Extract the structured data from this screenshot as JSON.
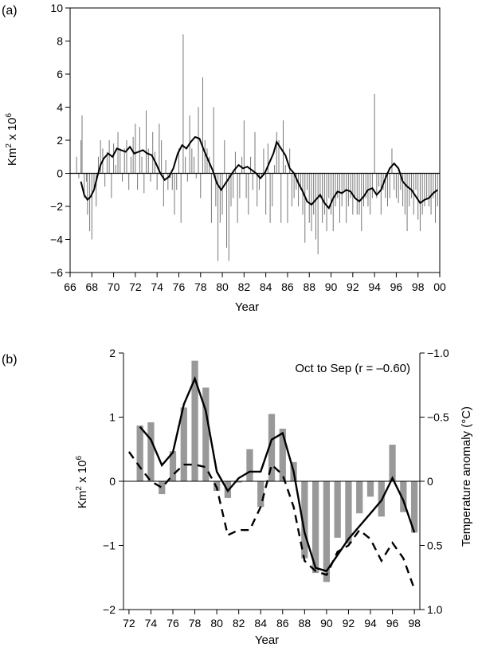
{
  "panel_a": {
    "letter": "(a)",
    "xlabel": "Year",
    "ylabel_main": "Km",
    "ylabel_sup2": "2",
    "ylabel_mid": " x 10",
    "ylabel_sup6": "6"
  },
  "panel_b": {
    "letter": "(b)",
    "xlabel": "Year",
    "ylabel_main": "Km",
    "ylabel_sup2": "2",
    "ylabel_mid": " x 10",
    "ylabel_sup6": "6",
    "y2label": "Temperature anomaly (°C)",
    "annotation": "Oct to Sep (r = –0.60)"
  },
  "chart_data": [
    {
      "type": "bar",
      "panel": "a",
      "xlabel": "Year",
      "ylabel": "Km2 x 10^6",
      "xlim": [
        1966,
        2000
      ],
      "ylim": [
        -6,
        10
      ],
      "xticks": [
        1966,
        1968,
        1970,
        1972,
        1974,
        1976,
        1978,
        1980,
        1982,
        1984,
        1986,
        1988,
        1990,
        1992,
        1994,
        1996,
        1998,
        2000
      ],
      "xtick_labels": [
        "66",
        "68",
        "70",
        "72",
        "74",
        "76",
        "78",
        "80",
        "82",
        "84",
        "86",
        "88",
        "90",
        "92",
        "94",
        "96",
        "98",
        "00"
      ],
      "yticks": [
        -6,
        -4,
        -2,
        0,
        2,
        4,
        6,
        8,
        10
      ],
      "ytick_labels": [
        "−6",
        "−4",
        "−2",
        "0",
        "2",
        "4",
        "6",
        "8",
        "10"
      ],
      "series": [
        {
          "kind": "weekly-bars",
          "x": [
            1966.6,
            1966.8,
            1967.0,
            1967.1,
            1967.3,
            1967.5,
            1967.6,
            1967.8,
            1968.0,
            1968.2,
            1968.4,
            1968.6,
            1968.8,
            1969.0,
            1969.2,
            1969.4,
            1969.6,
            1969.8,
            1970.0,
            1970.2,
            1970.4,
            1970.6,
            1970.8,
            1971.0,
            1971.2,
            1971.4,
            1971.6,
            1971.8,
            1972.0,
            1972.2,
            1972.4,
            1972.6,
            1972.8,
            1973.0,
            1973.2,
            1973.4,
            1973.6,
            1973.8,
            1974.0,
            1974.2,
            1974.4,
            1974.6,
            1974.8,
            1975.0,
            1975.2,
            1975.4,
            1975.6,
            1975.8,
            1976.0,
            1976.2,
            1976.4,
            1976.6,
            1976.8,
            1977.0,
            1977.2,
            1977.4,
            1977.6,
            1977.8,
            1978.0,
            1978.2,
            1978.4,
            1978.6,
            1978.8,
            1979.0,
            1979.2,
            1979.4,
            1979.6,
            1979.8,
            1980.0,
            1980.2,
            1980.4,
            1980.6,
            1980.8,
            1981.0,
            1981.2,
            1981.4,
            1981.6,
            1981.8,
            1982.0,
            1982.2,
            1982.4,
            1982.6,
            1982.8,
            1983.0,
            1983.2,
            1983.4,
            1983.6,
            1983.8,
            1984.0,
            1984.2,
            1984.4,
            1984.6,
            1984.8,
            1985.0,
            1985.2,
            1985.4,
            1985.6,
            1985.8,
            1986.0,
            1986.2,
            1986.4,
            1986.6,
            1986.8,
            1987.0,
            1987.2,
            1987.4,
            1987.6,
            1987.8,
            1988.0,
            1988.2,
            1988.4,
            1988.6,
            1988.8,
            1989.0,
            1989.2,
            1989.4,
            1989.6,
            1989.8,
            1990.0,
            1990.2,
            1990.4,
            1990.6,
            1990.8,
            1991.0,
            1991.2,
            1991.4,
            1991.6,
            1991.8,
            1992.0,
            1992.2,
            1992.4,
            1992.6,
            1992.8,
            1993.0,
            1993.2,
            1993.4,
            1993.6,
            1993.8,
            1994.0,
            1994.2,
            1994.4,
            1994.6,
            1994.8,
            1995.0,
            1995.2,
            1995.4,
            1995.6,
            1995.8,
            1996.0,
            1996.2,
            1996.4,
            1996.6,
            1996.8,
            1997.0,
            1997.2,
            1997.4,
            1997.6,
            1997.8,
            1998.0,
            1998.2,
            1998.4,
            1998.6,
            1998.8,
            1999.0,
            1999.2,
            1999.4,
            1999.6,
            1999.8
          ],
          "values": [
            1.0,
            -0.3,
            2.0,
            3.5,
            -1.5,
            -0.5,
            -2.5,
            -3.5,
            -4.0,
            -1.0,
            -2.0,
            1.0,
            2.0,
            1.5,
            -0.8,
            1.3,
            2.0,
            -1.5,
            1.8,
            0.5,
            2.5,
            1.5,
            -0.5,
            1.5,
            2.0,
            -1.0,
            1.0,
            2.2,
            3.0,
            -1.0,
            2.8,
            1.0,
            -1.2,
            3.8,
            1.5,
            -0.5,
            2.5,
            1.3,
            -1.0,
            3.0,
            2.0,
            -2.0,
            0.8,
            -1.0,
            -0.3,
            -1.0,
            -2.5,
            -1.0,
            1.5,
            -3.0,
            8.4,
            1.0,
            -0.5,
            3.5,
            1.5,
            1.0,
            -0.3,
            4.0,
            -1.5,
            5.8,
            2.0,
            1.5,
            1.0,
            -3.0,
            4.0,
            -2.0,
            -5.3,
            -3.0,
            -2.5,
            2.0,
            -4.5,
            -5.3,
            -2.0,
            -1.5,
            1.3,
            -3.0,
            -1.5,
            1.0,
            3.2,
            -1.5,
            -2.5,
            1.0,
            -1.0,
            2.5,
            -2.0,
            -1.0,
            -0.3,
            1.5,
            -2.5,
            1.8,
            -3.0,
            -2.0,
            0.5,
            2.5,
            2.0,
            -3.0,
            3.2,
            0.5,
            -3.0,
            1.5,
            -2.0,
            -1.5,
            -1.0,
            -2.0,
            -1.0,
            -2.5,
            -4.2,
            -1.0,
            -3.0,
            -3.5,
            -2.5,
            -4.0,
            -4.9,
            -1.5,
            -3.0,
            -2.5,
            -3.5,
            -1.5,
            -2.5,
            -3.5,
            -2.0,
            -1.5,
            -3.0,
            -2.0,
            -1.0,
            -3.0,
            -2.0,
            -1.5,
            -2.5,
            -1.5,
            -2.5,
            -2.5,
            -3.5,
            -2.0,
            -1.5,
            -2.0,
            -2.5,
            -1.5,
            4.8,
            -1.5,
            -0.8,
            -2.5,
            -1.0,
            -1.5,
            -2.0,
            -1.5,
            1.5,
            -1.0,
            -1.5,
            -1.8,
            -1.0,
            -2.0,
            -2.5,
            -3.5,
            -2.0,
            -1.5,
            -2.5,
            -1.0,
            -2.8,
            -3.5,
            -2.5,
            -2.0,
            -1.5,
            -2.0,
            -2.5,
            -1.5,
            -3.0,
            -2.0
          ]
        },
        {
          "kind": "running-mean",
          "x": [
            1967.0,
            1967.3,
            1967.6,
            1967.9,
            1968.2,
            1968.5,
            1968.8,
            1969.1,
            1969.5,
            1969.9,
            1970.3,
            1970.7,
            1971.1,
            1971.5,
            1971.9,
            1972.3,
            1972.7,
            1973.1,
            1973.5,
            1973.9,
            1974.3,
            1974.7,
            1975.1,
            1975.5,
            1975.9,
            1976.3,
            1976.7,
            1977.1,
            1977.5,
            1977.9,
            1978.3,
            1978.7,
            1979.1,
            1979.5,
            1979.9,
            1980.3,
            1980.7,
            1981.1,
            1981.5,
            1981.9,
            1982.3,
            1982.7,
            1983.1,
            1983.5,
            1983.9,
            1984.3,
            1984.7,
            1985.0,
            1985.4,
            1985.8,
            1986.2,
            1986.6,
            1987.0,
            1987.4,
            1987.8,
            1988.2,
            1988.6,
            1989.0,
            1989.4,
            1989.8,
            1990.2,
            1990.6,
            1991.0,
            1991.4,
            1991.8,
            1992.2,
            1992.6,
            1993.0,
            1993.4,
            1993.8,
            1994.2,
            1994.6,
            1995.0,
            1995.4,
            1995.8,
            1996.2,
            1996.6,
            1997.0,
            1997.4,
            1997.8,
            1998.2,
            1998.6,
            1999.0,
            1999.4,
            1999.8
          ],
          "values": [
            -0.5,
            -1.3,
            -1.6,
            -1.4,
            -1.0,
            -0.2,
            0.5,
            0.9,
            1.2,
            1.0,
            1.5,
            1.4,
            1.3,
            1.6,
            1.2,
            1.3,
            1.4,
            1.2,
            1.1,
            0.6,
            0.0,
            -0.4,
            -0.2,
            0.3,
            1.2,
            1.7,
            1.5,
            1.9,
            2.2,
            2.1,
            1.4,
            0.8,
            0.2,
            -0.6,
            -1.0,
            -0.6,
            -0.2,
            0.2,
            0.5,
            0.3,
            0.4,
            0.2,
            0.0,
            -0.3,
            0.0,
            0.6,
            1.2,
            1.9,
            1.5,
            1.1,
            0.3,
            0.0,
            -0.6,
            -1.1,
            -1.7,
            -1.9,
            -1.6,
            -1.3,
            -1.8,
            -2.1,
            -1.5,
            -1.1,
            -1.2,
            -1.0,
            -1.1,
            -1.5,
            -1.7,
            -1.4,
            -1.0,
            -0.9,
            -1.3,
            -1.0,
            -0.3,
            0.3,
            0.6,
            0.3,
            -0.5,
            -0.8,
            -1.0,
            -1.4,
            -1.8,
            -1.6,
            -1.5,
            -1.2,
            -1.0
          ]
        }
      ]
    },
    {
      "type": "bar",
      "panel": "b",
      "xlabel": "Year",
      "ylabel": "Km2 x 10^6",
      "y2label": "Temperature anomaly (°C)",
      "annotation": "Oct to Sep (r = –0.60)",
      "xlim": [
        1971.5,
        1998.5
      ],
      "ylim": [
        -2,
        2
      ],
      "y2lim_top_to_bottom": [
        -1.0,
        1.0
      ],
      "xticks": [
        1972,
        1974,
        1976,
        1978,
        1980,
        1982,
        1984,
        1986,
        1988,
        1990,
        1992,
        1994,
        1996,
        1998
      ],
      "xtick_labels": [
        "72",
        "74",
        "76",
        "78",
        "80",
        "82",
        "84",
        "86",
        "88",
        "90",
        "92",
        "94",
        "96",
        "98"
      ],
      "yticks": [
        -2,
        -1,
        0,
        1,
        2
      ],
      "ytick_labels": [
        "−2",
        "−1",
        "0",
        "1",
        "2"
      ],
      "y2ticks": [
        -1.0,
        -0.5,
        0,
        0.5,
        1.0
      ],
      "y2tick_labels": [
        "−1.0",
        "−0.5",
        "0",
        "0.5",
        "1.0"
      ],
      "categories": [
        1973,
        1974,
        1975,
        1976,
        1977,
        1978,
        1979,
        1980,
        1981,
        1982,
        1983,
        1984,
        1985,
        1986,
        1987,
        1988,
        1989,
        1990,
        1991,
        1992,
        1993,
        1994,
        1995,
        1996,
        1997,
        1998
      ],
      "series": [
        {
          "kind": "bars",
          "values": [
            0.87,
            0.92,
            -0.2,
            0.47,
            1.15,
            1.88,
            1.46,
            -0.15,
            -0.26,
            -0.02,
            0.5,
            -0.4,
            1.05,
            0.82,
            0.3,
            -1.2,
            -1.43,
            -1.57,
            -0.88,
            -0.97,
            -0.5,
            -0.24,
            -0.55,
            0.57,
            -0.48,
            -0.8
          ]
        },
        {
          "kind": "solid-line",
          "x": [
            1973,
            1974,
            1975,
            1976,
            1977,
            1978,
            1979,
            1980,
            1981,
            1982,
            1983,
            1984,
            1985,
            1986,
            1987,
            1988,
            1989,
            1990,
            1991,
            1992,
            1993,
            1994,
            1995,
            1996,
            1997,
            1998
          ],
          "values": [
            0.85,
            0.65,
            0.25,
            0.45,
            1.2,
            1.6,
            1.1,
            0.15,
            -0.15,
            0.05,
            0.15,
            0.15,
            0.65,
            0.75,
            0.15,
            -0.8,
            -1.35,
            -1.4,
            -1.15,
            -0.9,
            -0.7,
            -0.5,
            -0.3,
            0.05,
            -0.3,
            -0.8
          ]
        },
        {
          "kind": "dashed-line",
          "axis": "right",
          "x": [
            1972,
            1973,
            1974,
            1975,
            1976,
            1977,
            1978,
            1979,
            1980,
            1981,
            1982,
            1983,
            1984,
            1985,
            1986,
            1987,
            1988,
            1989,
            1990,
            1991,
            1992,
            1993,
            1994,
            1995,
            1996,
            1997,
            1998
          ],
          "values": [
            -0.23,
            -0.11,
            0.0,
            0.05,
            -0.05,
            -0.13,
            -0.13,
            -0.11,
            0.05,
            0.42,
            0.38,
            0.38,
            0.2,
            -0.13,
            -0.05,
            0.2,
            0.62,
            0.7,
            0.73,
            0.55,
            0.5,
            0.38,
            0.45,
            0.62,
            0.48,
            0.6,
            0.84
          ]
        }
      ]
    }
  ]
}
